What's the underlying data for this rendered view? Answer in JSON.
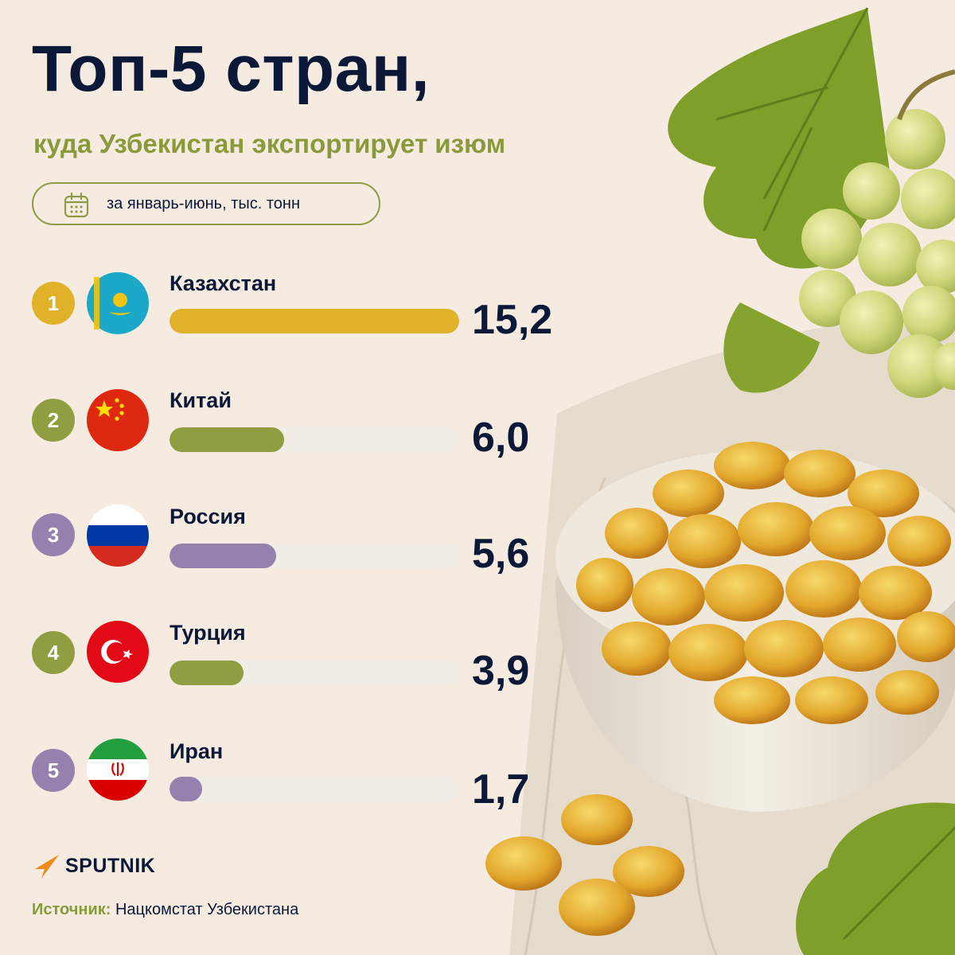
{
  "header": {
    "title": "Топ-5 стран,",
    "subtitle": "куда Узбекистан экспортирует изюм",
    "period": "за январь-июнь, тыс. тонн"
  },
  "icons": {
    "period": "calendar-icon",
    "logo": "sputnik-logo",
    "flags": [
      "kazakhstan-flag-icon",
      "china-flag-icon",
      "russia-flag-icon",
      "turkey-flag-icon",
      "iran-flag-icon"
    ]
  },
  "colors": {
    "title": "#0b1838",
    "accent_olive": "#8a9a3b",
    "bar_gold": "#e0b22a",
    "bar_olive": "#909e42",
    "bar_purple": "#9481ad",
    "bar_track": "#f1ece6"
  },
  "chart_data": {
    "type": "bar",
    "orientation": "horizontal",
    "title": "Топ-5 стран,",
    "subtitle": "куда Узбекистан экспортирует изюм",
    "unit": "за январь-июнь, тыс. тонн",
    "categories": [
      "Казахстан",
      "Китай",
      "Россия",
      "Турция",
      "Иран"
    ],
    "ranks": [
      "1",
      "2",
      "3",
      "4",
      "5"
    ],
    "values": [
      15.2,
      6.0,
      5.6,
      3.9,
      1.7
    ],
    "value_labels": [
      "15,2",
      "6,0",
      "5,6",
      "3,9",
      "1,7"
    ],
    "bar_colors": [
      "#e0b22a",
      "#909e42",
      "#9481ad",
      "#909e42",
      "#9481ad"
    ],
    "xlim": [
      0,
      15.2
    ],
    "grid": false,
    "legend": "none"
  },
  "footer": {
    "brand": "SPUTNIK",
    "source_label": "Источник:",
    "source_text": "Нацкомстат Узбекистана"
  }
}
